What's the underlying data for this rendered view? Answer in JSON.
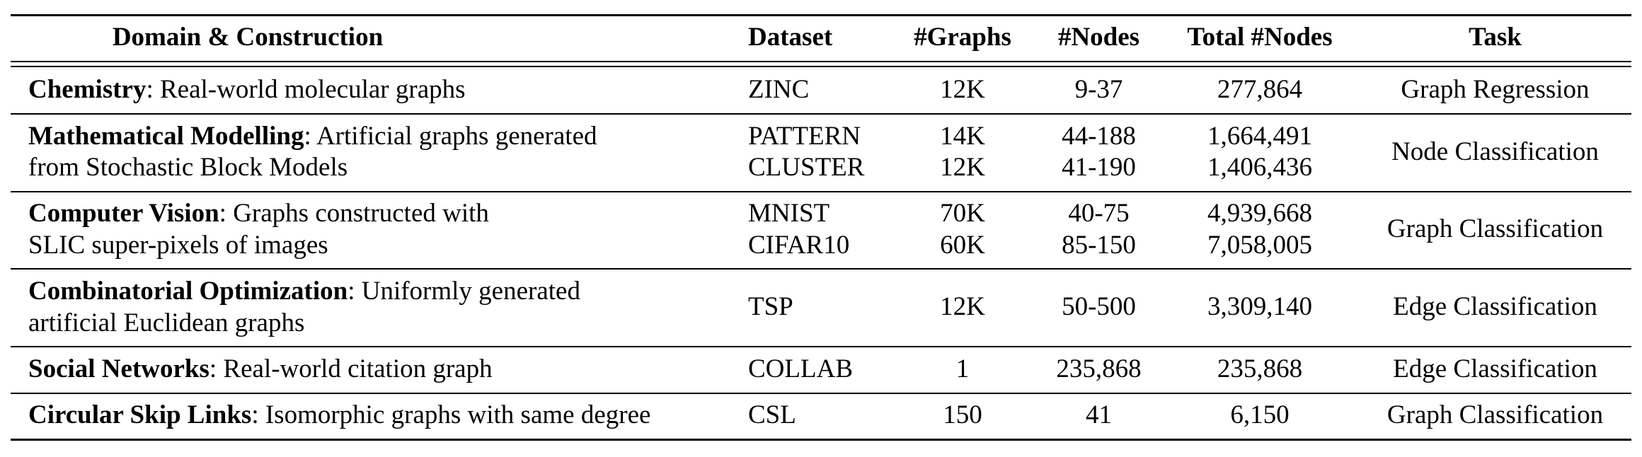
{
  "header": {
    "domain": "Domain & Construction",
    "dataset": "Dataset",
    "graphs": "#Graphs",
    "nodes": "#Nodes",
    "total_nodes": "Total #Nodes",
    "task": "Task"
  },
  "rows": [
    {
      "domain_bold": "Chemistry",
      "domain_rest": ": Real-world molecular graphs",
      "domain_line2": "",
      "datasets": [
        "ZINC"
      ],
      "graphs": [
        "12K"
      ],
      "nodes": [
        "9-37"
      ],
      "total": [
        "277,864"
      ],
      "task": "Graph Regression"
    },
    {
      "domain_bold": "Mathematical Modelling",
      "domain_rest": ": Artificial graphs generated",
      "domain_line2": "from Stochastic Block Models",
      "datasets": [
        "PATTERN",
        "CLUSTER"
      ],
      "graphs": [
        "14K",
        "12K"
      ],
      "nodes": [
        "44-188",
        "41-190"
      ],
      "total": [
        "1,664,491",
        "1,406,436"
      ],
      "task": "Node Classification"
    },
    {
      "domain_bold": "Computer Vision",
      "domain_rest": ": Graphs constructed with",
      "domain_line2": "SLIC super-pixels of images",
      "datasets": [
        "MNIST",
        "CIFAR10"
      ],
      "graphs": [
        "70K",
        "60K"
      ],
      "nodes": [
        "40-75",
        "85-150"
      ],
      "total": [
        "4,939,668",
        "7,058,005"
      ],
      "task": "Graph Classification"
    },
    {
      "domain_bold": "Combinatorial Optimization",
      "domain_rest": ": Uniformly generated",
      "domain_line2": "artificial Euclidean graphs",
      "datasets": [
        "TSP"
      ],
      "graphs": [
        "12K"
      ],
      "nodes": [
        "50-500"
      ],
      "total": [
        "3,309,140"
      ],
      "task": "Edge Classification"
    },
    {
      "domain_bold": "Social Networks",
      "domain_rest": ": Real-world citation graph",
      "domain_line2": "",
      "datasets": [
        "COLLAB"
      ],
      "graphs": [
        "1"
      ],
      "nodes": [
        "235,868"
      ],
      "total": [
        "235,868"
      ],
      "task": "Edge Classification"
    },
    {
      "domain_bold": "Circular Skip Links",
      "domain_rest": ": Isomorphic graphs with same degree",
      "domain_line2": "",
      "datasets": [
        "CSL"
      ],
      "graphs": [
        "150"
      ],
      "nodes": [
        "41"
      ],
      "total": [
        "6,150"
      ],
      "task": "Graph Classification"
    }
  ]
}
